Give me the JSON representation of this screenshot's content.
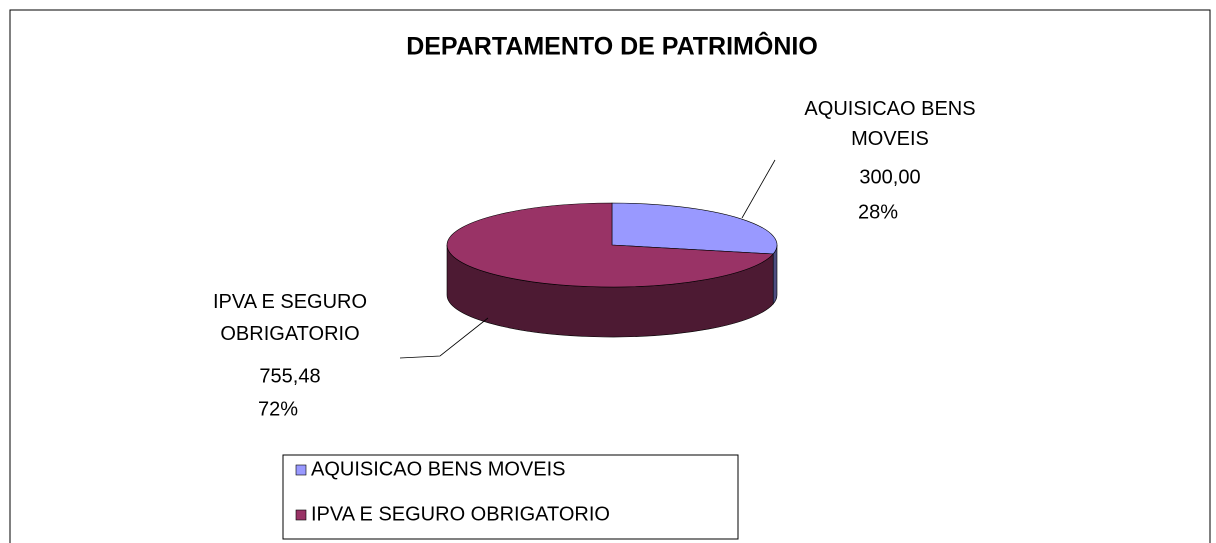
{
  "chart_data": {
    "type": "pie",
    "title": "DEPARTAMENTO DE PATRIMÔNIO",
    "categories": [
      "AQUISICAO BENS MOVEIS",
      "IPVA E SEGURO OBRIGATORIO"
    ],
    "values": [
      300.0,
      755.48
    ],
    "value_labels": [
      "300,00",
      "755,48"
    ],
    "percents": [
      28,
      72
    ],
    "percent_labels": [
      "28%",
      "72%"
    ],
    "colors": [
      "#9999ff",
      "#993366"
    ],
    "side_colors": [
      "#4d4d80",
      "#4d1a33"
    ],
    "legend": "bottom"
  }
}
